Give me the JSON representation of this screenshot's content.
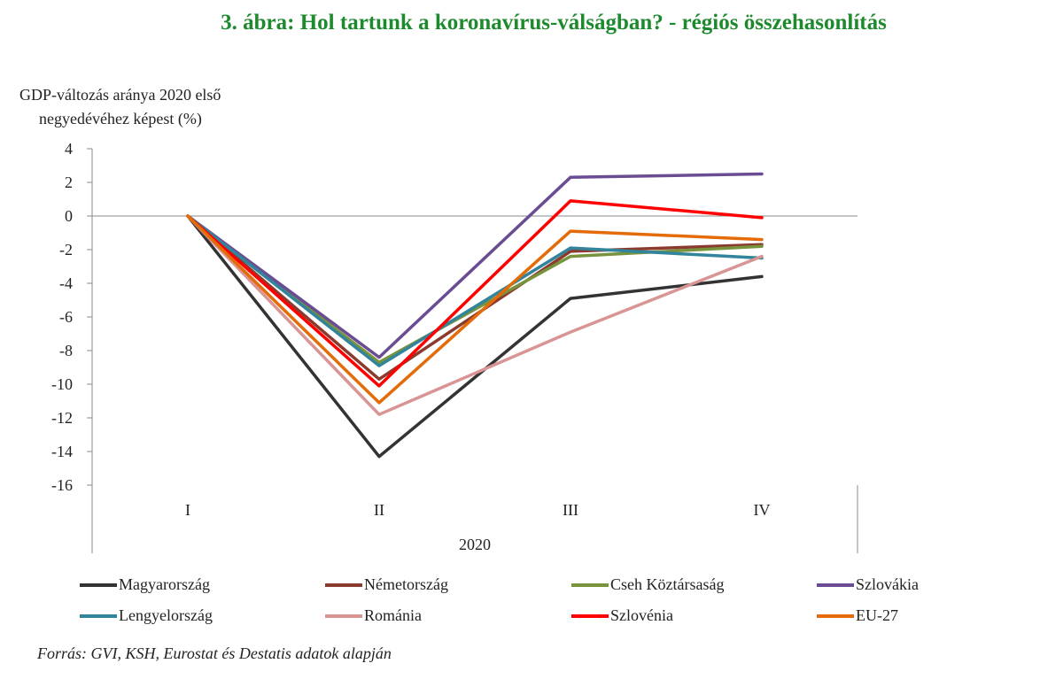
{
  "title": "3. ábra: Hol tartunk a koronavírus-válságban? - régiós összehasonlítás",
  "source": "Forrás: GVI, KSH, Eurostat és Destatis adatok alapján",
  "chart_data": {
    "type": "line",
    "ylabel_lines": [
      "GDP-változás aránya 2020 első",
      "negyedévéhez képest (%)"
    ],
    "xlabel": "2020",
    "categories": [
      "I",
      "II",
      "III",
      "IV"
    ],
    "ylim": [
      -16,
      4
    ],
    "yticks": [
      "4",
      "2",
      "0",
      "-2",
      "-4",
      "-6",
      "-8",
      "-10",
      "-12",
      "-14",
      "-16"
    ],
    "legend_position": "bottom",
    "grid": false,
    "series": [
      {
        "name": "Magyarország",
        "color": "#333333",
        "values": [
          0,
          -14.3,
          -4.9,
          -3.6
        ]
      },
      {
        "name": "Németország",
        "color": "#8b3a2e",
        "values": [
          0,
          -9.7,
          -2.1,
          -1.7
        ]
      },
      {
        "name": "Cseh Köztársaság",
        "color": "#77933c",
        "values": [
          0,
          -8.7,
          -2.4,
          -1.8
        ]
      },
      {
        "name": "Szlovákia",
        "color": "#6a4c93",
        "values": [
          0,
          -8.4,
          2.3,
          2.5
        ]
      },
      {
        "name": "Lengyelország",
        "color": "#31849b",
        "values": [
          0,
          -8.9,
          -1.9,
          -2.5
        ]
      },
      {
        "name": "Románia",
        "color": "#d99594",
        "values": [
          0,
          -11.8,
          -6.9,
          -2.4
        ]
      },
      {
        "name": "Szlovénia",
        "color": "#ff0000",
        "values": [
          0,
          -10.1,
          0.9,
          -0.1
        ]
      },
      {
        "name": "EU-27",
        "color": "#e36c09",
        "values": [
          0,
          -11.1,
          -0.9,
          -1.4
        ]
      }
    ]
  }
}
